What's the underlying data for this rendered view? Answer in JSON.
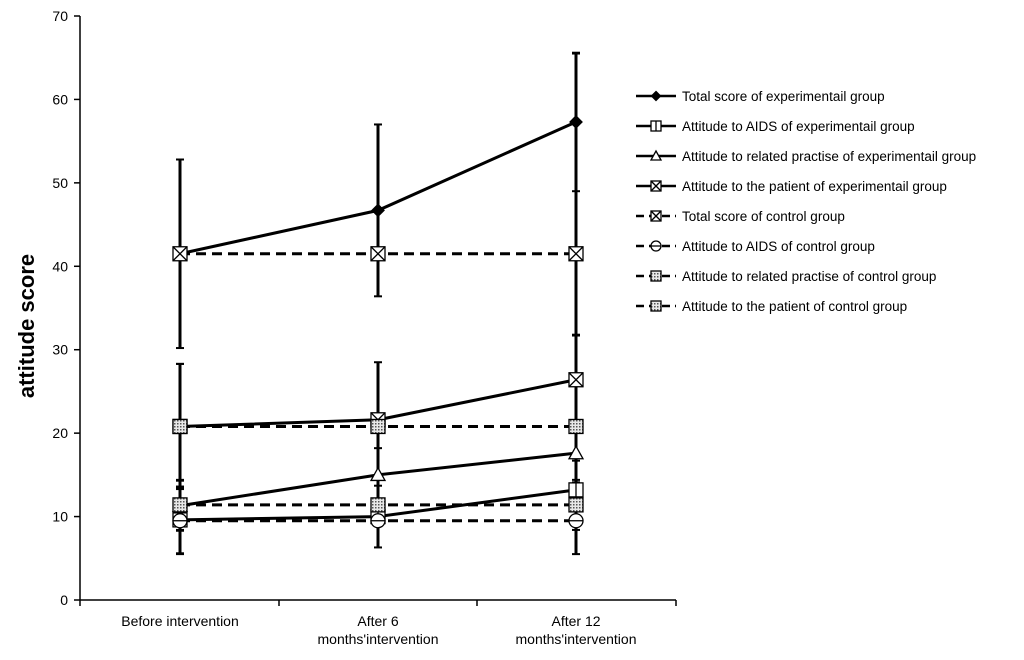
{
  "chart_data": {
    "type": "line",
    "title": "",
    "xlabel": "",
    "ylabel": "attitude score",
    "ylim": [
      0,
      70
    ],
    "yticks": [
      0,
      10,
      20,
      30,
      40,
      50,
      60,
      70
    ],
    "grid": false,
    "legend_position": "right",
    "categories": [
      {
        "line1": "Before intervention",
        "line2": ""
      },
      {
        "line1": "After 6",
        "line2": "months'intervention"
      },
      {
        "line1": "After 12",
        "line2": "months'intervention"
      }
    ],
    "series": [
      {
        "name": "Total score of experimentail group",
        "values": [
          41.5,
          46.7,
          57.3
        ],
        "err": [
          11.3,
          10.3,
          8.3
        ],
        "dash": false,
        "marker": "diamond"
      },
      {
        "name": "Attitude to AIDS of experimentail group",
        "values": [
          9.6,
          10.0,
          13.2
        ],
        "err": [
          4.0,
          3.7,
          3.5
        ],
        "dash": false,
        "marker": "square-bar"
      },
      {
        "name": "Attitude to related practise of experimentail group",
        "values": [
          11.3,
          15.0,
          17.6
        ],
        "err": [
          3.0,
          3.2,
          3.5
        ],
        "dash": false,
        "marker": "triangle"
      },
      {
        "name": "Attitude to the patient of experimentail group",
        "values": [
          20.8,
          21.6,
          26.4
        ],
        "err": [
          7.5,
          6.9,
          5.3
        ],
        "dash": false,
        "marker": "square-x"
      },
      {
        "name": "Total score of control group",
        "values": [
          41.5,
          41.5,
          41.5
        ],
        "err": [
          0,
          0,
          24.0
        ],
        "dash": true,
        "marker": "square-x"
      },
      {
        "name": "Attitude to AIDS of control group",
        "values": [
          9.5,
          9.5,
          9.5
        ],
        "err": [
          4.0,
          0,
          4.0
        ],
        "dash": true,
        "marker": "circle"
      },
      {
        "name": "Attitude to related practise of control group",
        "values": [
          11.4,
          11.4,
          11.4
        ],
        "err": [
          3.0,
          0,
          3.0
        ],
        "dash": true,
        "marker": "square-dot"
      },
      {
        "name": "Attitude to the patient of control group",
        "values": [
          20.8,
          20.8,
          20.8
        ],
        "err": [
          7.5,
          0,
          11.0
        ],
        "dash": true,
        "marker": "square-dot"
      }
    ]
  }
}
